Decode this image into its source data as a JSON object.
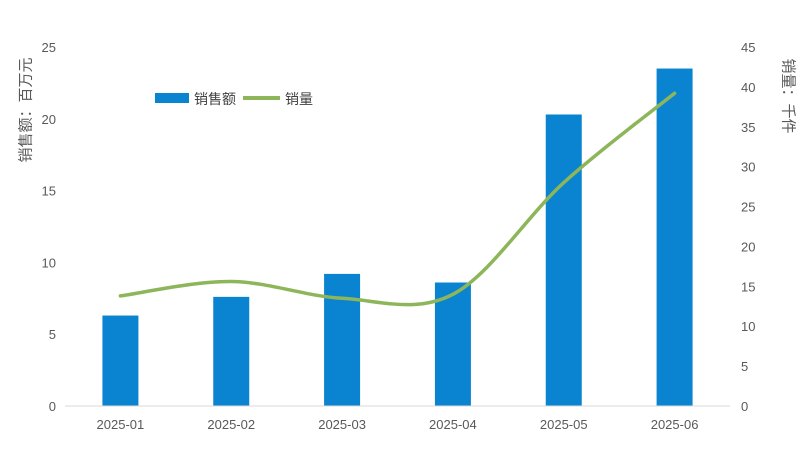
{
  "chart_data": {
    "type": "bar+line",
    "categories": [
      "2025-01",
      "2025-02",
      "2025-03",
      "2025-04",
      "2025-05",
      "2025-06"
    ],
    "series": [
      {
        "name": "销售额",
        "type": "bar",
        "axis": "left",
        "color": "#0a84d0",
        "values": [
          6.3,
          7.6,
          9.2,
          8.6,
          20.3,
          23.5
        ]
      },
      {
        "name": "销量",
        "type": "line",
        "axis": "right",
        "color": "#8db55a",
        "smooth": true,
        "values": [
          13.8,
          15.6,
          13.5,
          14.0,
          28.0,
          39.2
        ]
      }
    ],
    "y_left": {
      "label": "销售额：百万元",
      "range": [
        0,
        25
      ],
      "ticks": [
        0,
        5,
        10,
        15,
        20,
        25
      ]
    },
    "y_right": {
      "label": "销量：千件",
      "range": [
        0,
        45
      ],
      "ticks": [
        0,
        5,
        10,
        15,
        20,
        25,
        30,
        35,
        40,
        45
      ]
    },
    "legend_position": "top-left",
    "grid": false
  }
}
